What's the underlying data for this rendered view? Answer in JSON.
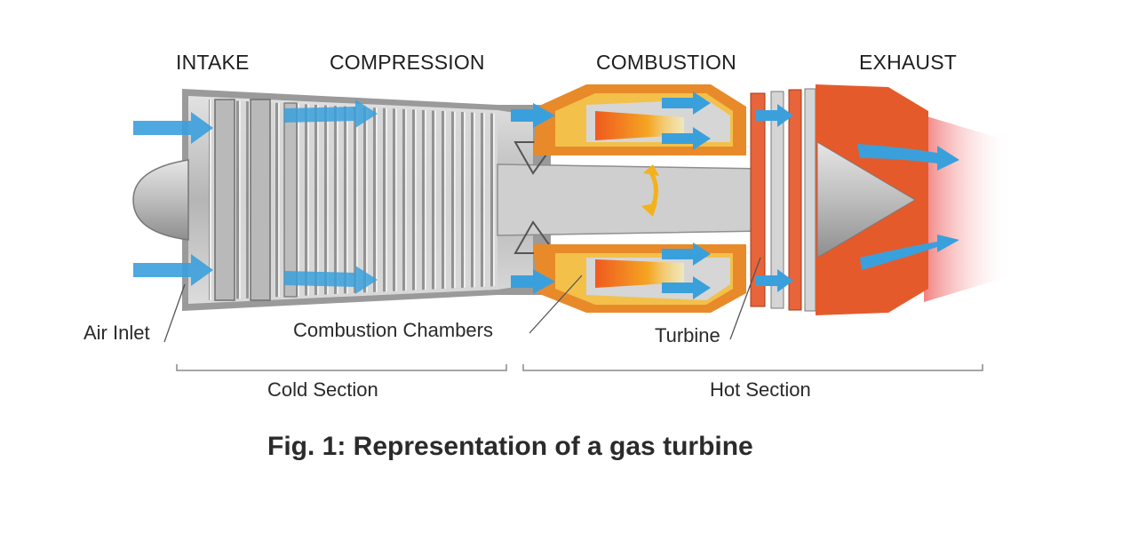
{
  "stages": {
    "intake": "INTAKE",
    "compression": "COMPRESSION",
    "combustion": "COMBUSTION",
    "exhaust": "EXHAUST"
  },
  "parts": {
    "air_inlet": "Air Inlet",
    "combustion_chambers": "Combustion Chambers",
    "turbine": "Turbine"
  },
  "sections": {
    "cold": "Cold Section",
    "hot": "Hot Section"
  },
  "caption": "Fig. 1: Representation of a gas turbine",
  "colors": {
    "airflow": "#3aa0dc",
    "casing": "#e85a2c",
    "hot_yellow": "#f3b21b",
    "metal": "#c9c9c9"
  }
}
